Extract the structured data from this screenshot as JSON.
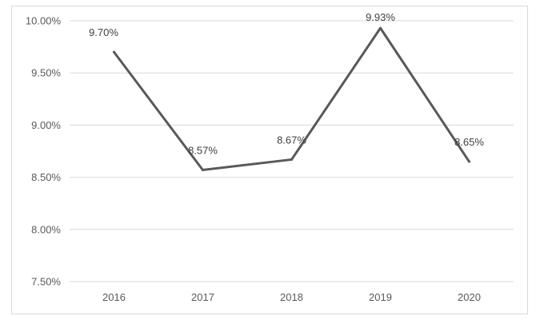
{
  "chart_data": {
    "type": "line",
    "title": "",
    "xlabel": "",
    "ylabel": "",
    "categories": [
      "2016",
      "2017",
      "2018",
      "2019",
      "2020"
    ],
    "series": [
      {
        "values": [
          9.7,
          8.57,
          8.67,
          9.93,
          8.65
        ],
        "labels": [
          "9.70%",
          "8.57%",
          "8.67%",
          "9.93%",
          "8.65%"
        ]
      }
    ],
    "ylim": [
      7.5,
      10.0
    ],
    "yticks": [
      7.5,
      8.0,
      8.5,
      9.0,
      9.5,
      10.0
    ],
    "ytick_labels": [
      "7.50%",
      "8.00%",
      "8.50%",
      "9.00%",
      "9.50%",
      "10.00%"
    ],
    "grid": true,
    "legend": "none",
    "colors": {
      "line": "#595959",
      "grid": "#d9d9d9",
      "border": "#d9d9d9"
    }
  }
}
